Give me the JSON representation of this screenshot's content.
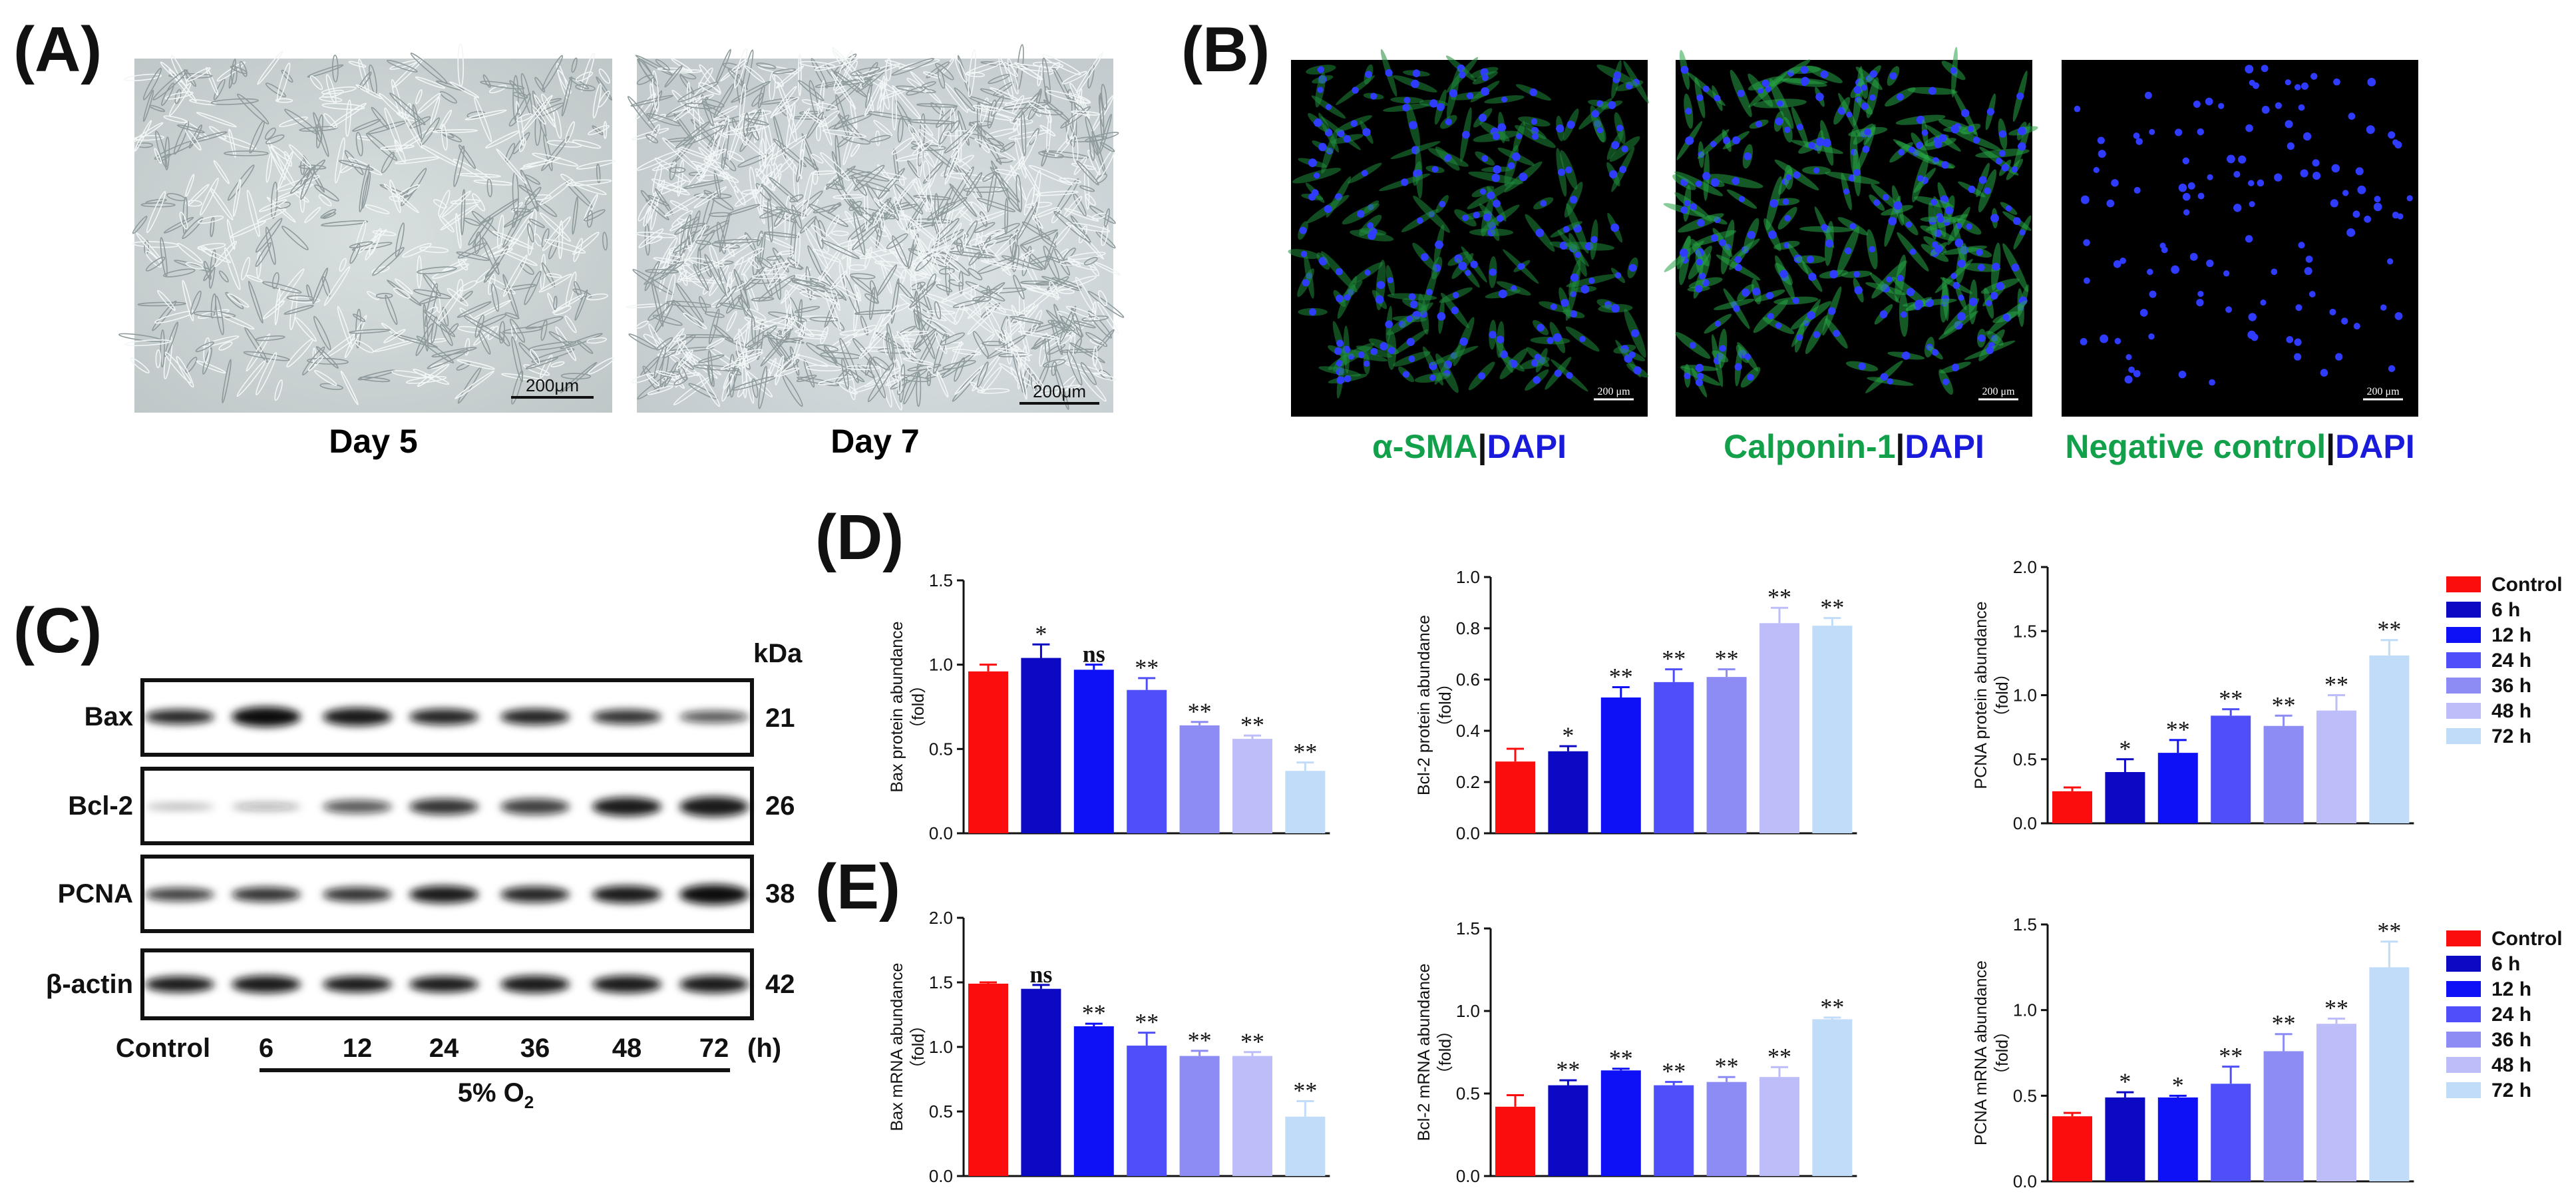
{
  "panel_labels": {
    "a": "(A)",
    "b": "(B)",
    "c": "(C)",
    "d": "(D)",
    "e": "(E)"
  },
  "panel_a": {
    "images": [
      {
        "scale_bar": "200μm",
        "caption": "Day 5"
      },
      {
        "scale_bar": "200μm",
        "caption": "Day 7"
      }
    ]
  },
  "panel_b": {
    "images": [
      {
        "scale_bar": "200 μm",
        "marker": "α-SMA",
        "sep": "|",
        "stain": "DAPI"
      },
      {
        "scale_bar": "200 μm",
        "marker": "Calponin-1",
        "sep": "|",
        "stain": "DAPI"
      },
      {
        "scale_bar": "200 μm",
        "marker": "Negative control",
        "sep": "|",
        "stain": "DAPI"
      }
    ],
    "colors": {
      "marker": "#13a04b",
      "stain": "#1a1adb"
    }
  },
  "panel_c": {
    "kda_label": "kDa",
    "proteins": [
      {
        "name": "Bax",
        "kda": "21"
      },
      {
        "name": "Bcl-2",
        "kda": "26"
      },
      {
        "name": "PCNA",
        "kda": "38"
      },
      {
        "name": "β-actin",
        "kda": "42"
      }
    ],
    "lanes": [
      "Control",
      "6",
      "12",
      "24",
      "36",
      "48",
      "72"
    ],
    "unit": "(h)",
    "condition_prefix": "5% O",
    "condition_sub": "2"
  },
  "legend": {
    "items": [
      "Control",
      "6 h",
      "12 h",
      "24 h",
      "36 h",
      "48 h",
      "72 h"
    ]
  },
  "colors": {
    "series": [
      "#fb0d0d",
      "#0b09c4",
      "#0e10f6",
      "#4e4ff9",
      "#8c8cf4",
      "#bdbdf9",
      "#c1dcf9"
    ]
  },
  "chart_data": [
    {
      "id": "d1",
      "type": "bar",
      "ylabel": "Bax protein abundance",
      "ylabel_unit": "（fold）",
      "categories": [
        "Control",
        "6 h",
        "12 h",
        "24 h",
        "36 h",
        "48 h",
        "72 h"
      ],
      "values": [
        0.96,
        1.04,
        0.97,
        0.85,
        0.64,
        0.56,
        0.37
      ],
      "errors": [
        0.04,
        0.08,
        0.03,
        0.07,
        0.02,
        0.02,
        0.05
      ],
      "labels": [
        "",
        "*",
        "ns",
        "**",
        "**",
        "**",
        "**"
      ],
      "ylim": [
        0,
        1.5
      ],
      "yticks": [
        "0.0",
        "0.5",
        "1.0",
        "1.5"
      ]
    },
    {
      "id": "d2",
      "type": "bar",
      "ylabel": "Bcl-2 protein abundance",
      "ylabel_unit": "（fold）",
      "categories": [
        "Control",
        "6 h",
        "12 h",
        "24 h",
        "36 h",
        "48 h",
        "72 h"
      ],
      "values": [
        0.28,
        0.32,
        0.53,
        0.59,
        0.61,
        0.82,
        0.81
      ],
      "errors": [
        0.05,
        0.02,
        0.04,
        0.05,
        0.03,
        0.06,
        0.03
      ],
      "labels": [
        "",
        "*",
        "**",
        "**",
        "**",
        "**",
        "**"
      ],
      "ylim": [
        0,
        1.0
      ],
      "yticks": [
        "0.0",
        "0.2",
        "0.4",
        "0.6",
        "0.8",
        "1.0"
      ]
    },
    {
      "id": "d3",
      "type": "bar",
      "ylabel": "PCNA protein abundance",
      "ylabel_unit": "（fold）",
      "categories": [
        "Control",
        "6 h",
        "12 h",
        "24 h",
        "36 h",
        "48 h",
        "72 h"
      ],
      "values": [
        0.25,
        0.4,
        0.55,
        0.84,
        0.76,
        0.88,
        1.31
      ],
      "errors": [
        0.03,
        0.1,
        0.1,
        0.05,
        0.08,
        0.12,
        0.12
      ],
      "labels": [
        "",
        "*",
        "**",
        "**",
        "**",
        "**",
        "**"
      ],
      "ylim": [
        0,
        2.0
      ],
      "yticks": [
        "0.0",
        "0.5",
        "1.0",
        "1.5",
        "2.0"
      ]
    },
    {
      "id": "e1",
      "type": "bar",
      "ylabel": "Bax mRNA abundance",
      "ylabel_unit": "（fold）",
      "categories": [
        "Control",
        "6 h",
        "12 h",
        "24 h",
        "36 h",
        "48 h",
        "72 h"
      ],
      "values": [
        1.49,
        1.45,
        1.16,
        1.01,
        0.93,
        0.93,
        0.46
      ],
      "errors": [
        0.01,
        0.03,
        0.02,
        0.1,
        0.04,
        0.03,
        0.12
      ],
      "labels": [
        "",
        "ns",
        "**",
        "**",
        "**",
        "**",
        "**"
      ],
      "ylim": [
        0,
        2.0
      ],
      "yticks": [
        "0.0",
        "0.5",
        "1.0",
        "1.5",
        "2.0"
      ]
    },
    {
      "id": "e2",
      "type": "bar",
      "ylabel": "Bcl-2 mRNA abundance",
      "ylabel_unit": "（fold）",
      "categories": [
        "Control",
        "6 h",
        "12 h",
        "24 h",
        "36 h",
        "48 h",
        "72 h"
      ],
      "values": [
        0.42,
        0.55,
        0.64,
        0.55,
        0.57,
        0.6,
        0.95
      ],
      "errors": [
        0.07,
        0.03,
        0.01,
        0.02,
        0.03,
        0.06,
        0.01
      ],
      "labels": [
        "",
        "**",
        "**",
        "**",
        "**",
        "**",
        "**"
      ],
      "ylim": [
        0,
        1.5
      ],
      "yticks": [
        "0.0",
        "0.5",
        "1.0",
        "1.5"
      ]
    },
    {
      "id": "e3",
      "type": "bar",
      "ylabel": "PCNA mRNA abundance",
      "ylabel_unit": "（fold）",
      "categories": [
        "Control",
        "6 h",
        "12 h",
        "24 h",
        "36 h",
        "48 h",
        "72 h"
      ],
      "values": [
        0.38,
        0.49,
        0.49,
        0.57,
        0.76,
        0.92,
        1.25
      ],
      "errors": [
        0.02,
        0.03,
        0.01,
        0.1,
        0.1,
        0.03,
        0.15
      ],
      "labels": [
        "",
        "*",
        "*",
        "**",
        "**",
        "**",
        "**"
      ],
      "ylim": [
        0,
        1.5
      ],
      "yticks": [
        "0.0",
        "0.5",
        "1.0",
        "1.5"
      ]
    }
  ]
}
